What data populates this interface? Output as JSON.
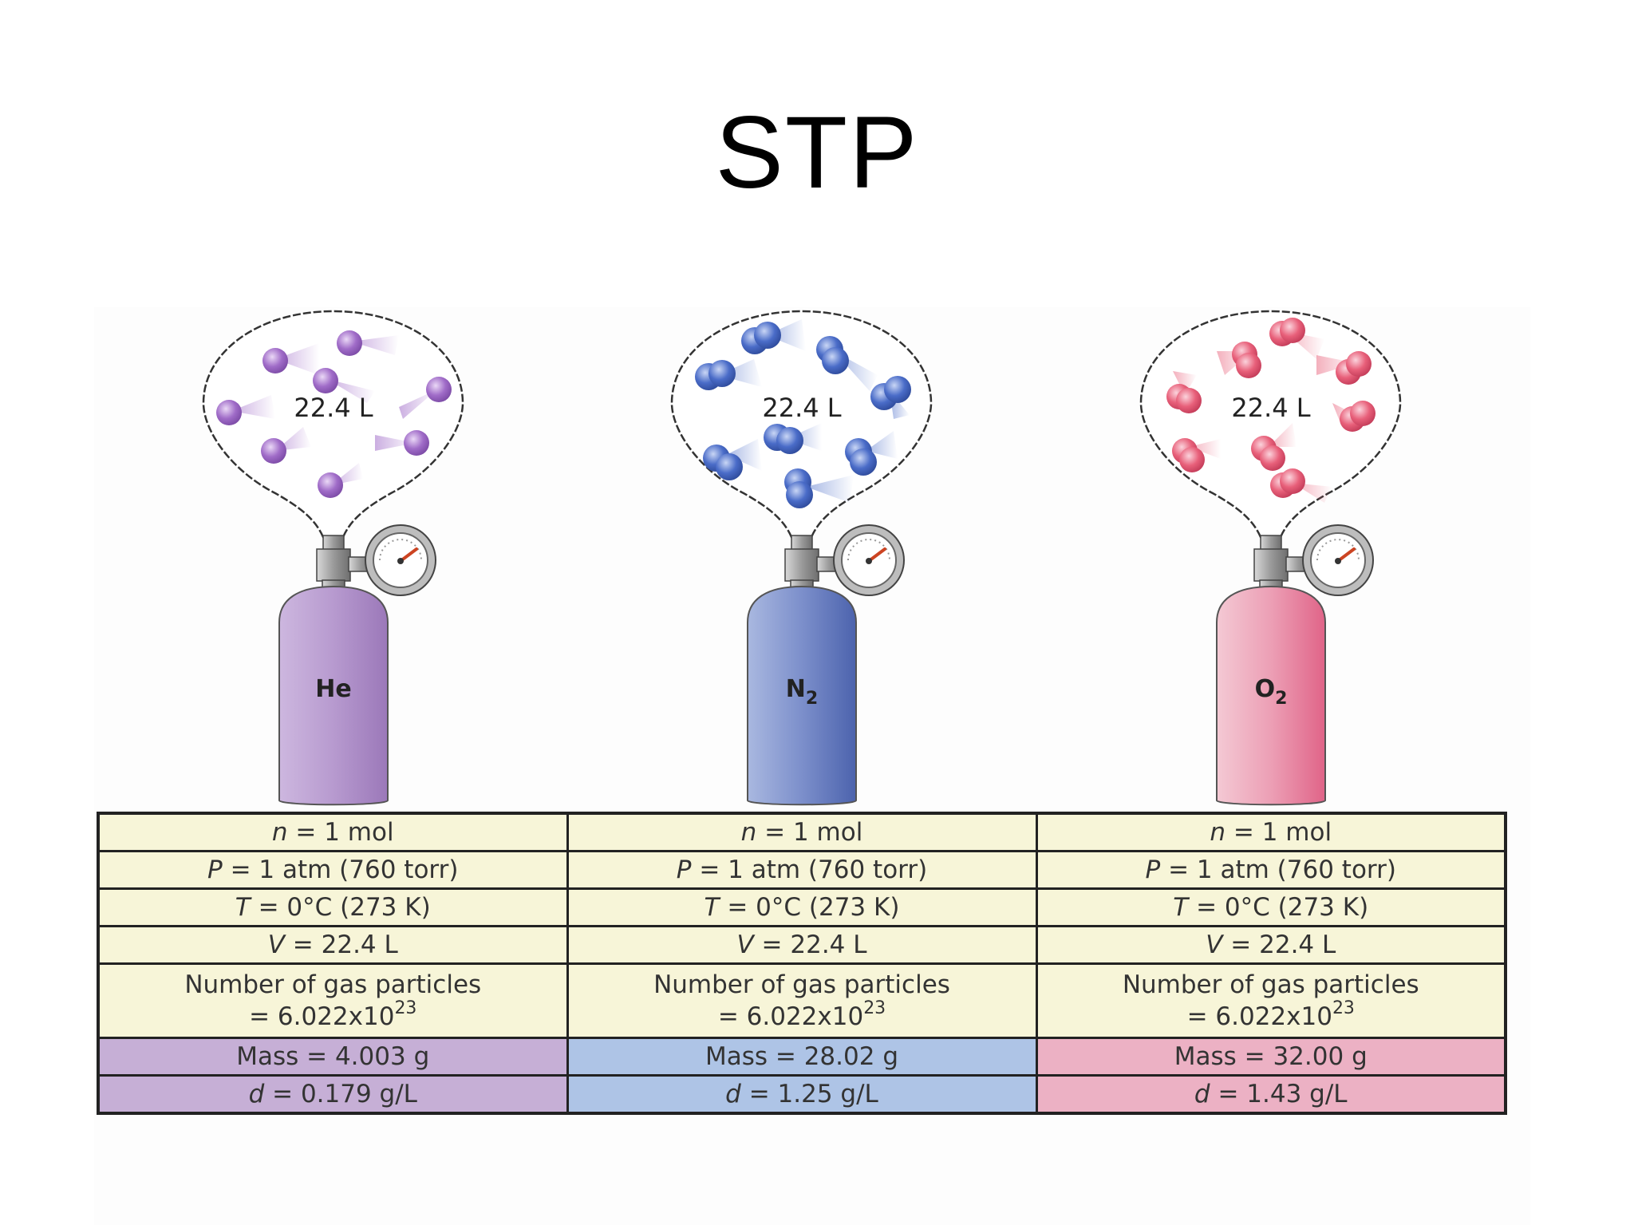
{
  "title": "STP",
  "gases": [
    {
      "formula": "He",
      "subscript": "",
      "volume_label": "22.4 L",
      "n": "= 1 mol",
      "P": "= 1 atm (760 torr)",
      "T": "= 0°C (273 K)",
      "V": "= 22.4 L",
      "particles_label": "Number of gas particles",
      "particles_value": "= 6.022x10",
      "particles_exp": "23",
      "mass": "Mass = 4.003 g",
      "density": "= 0.179 g/L",
      "molecule": "atom"
    },
    {
      "formula": "N",
      "subscript": "2",
      "volume_label": "22.4 L",
      "n": "= 1 mol",
      "P": "= 1 atm (760 torr)",
      "T": "= 0°C (273 K)",
      "V": "= 22.4 L",
      "particles_label": "Number of gas particles",
      "particles_value": "= 6.022x10",
      "particles_exp": "23",
      "mass": "Mass = 28.02 g",
      "density": "= 1.25 g/L",
      "molecule": "diatomic"
    },
    {
      "formula": "O",
      "subscript": "2",
      "volume_label": "22.4 L",
      "n": "= 1 mol",
      "P": "= 1 atm (760 torr)",
      "T": "= 0°C (273 K)",
      "V": "= 22.4 L",
      "particles_label": "Number of gas particles",
      "particles_value": "= 6.022x10",
      "particles_exp": "23",
      "mass": "Mass = 32.00 g",
      "density": "= 1.43 g/L",
      "molecule": "diatomic"
    }
  ],
  "symbols": {
    "n": "n",
    "P": "P",
    "T": "T",
    "V": "V",
    "d": "d"
  },
  "colors": {
    "he_cylinder_light": "#cdb7df",
    "he_cylinder_dark": "#9b78b9",
    "he_particle": "#a06cc8",
    "n2_cylinder_light": "#a9b8e0",
    "n2_cylinder_dark": "#4c63ad",
    "n2_particle": "#4a6cc8",
    "o2_cylinder_light": "#f4c9d4",
    "o2_cylinder_dark": "#e06488",
    "o2_particle": "#e8607a",
    "table_yellow": "#f7f5d8",
    "table_he": "#c6afd6",
    "table_n2": "#aec4e6",
    "table_o2": "#ecb1c4"
  }
}
